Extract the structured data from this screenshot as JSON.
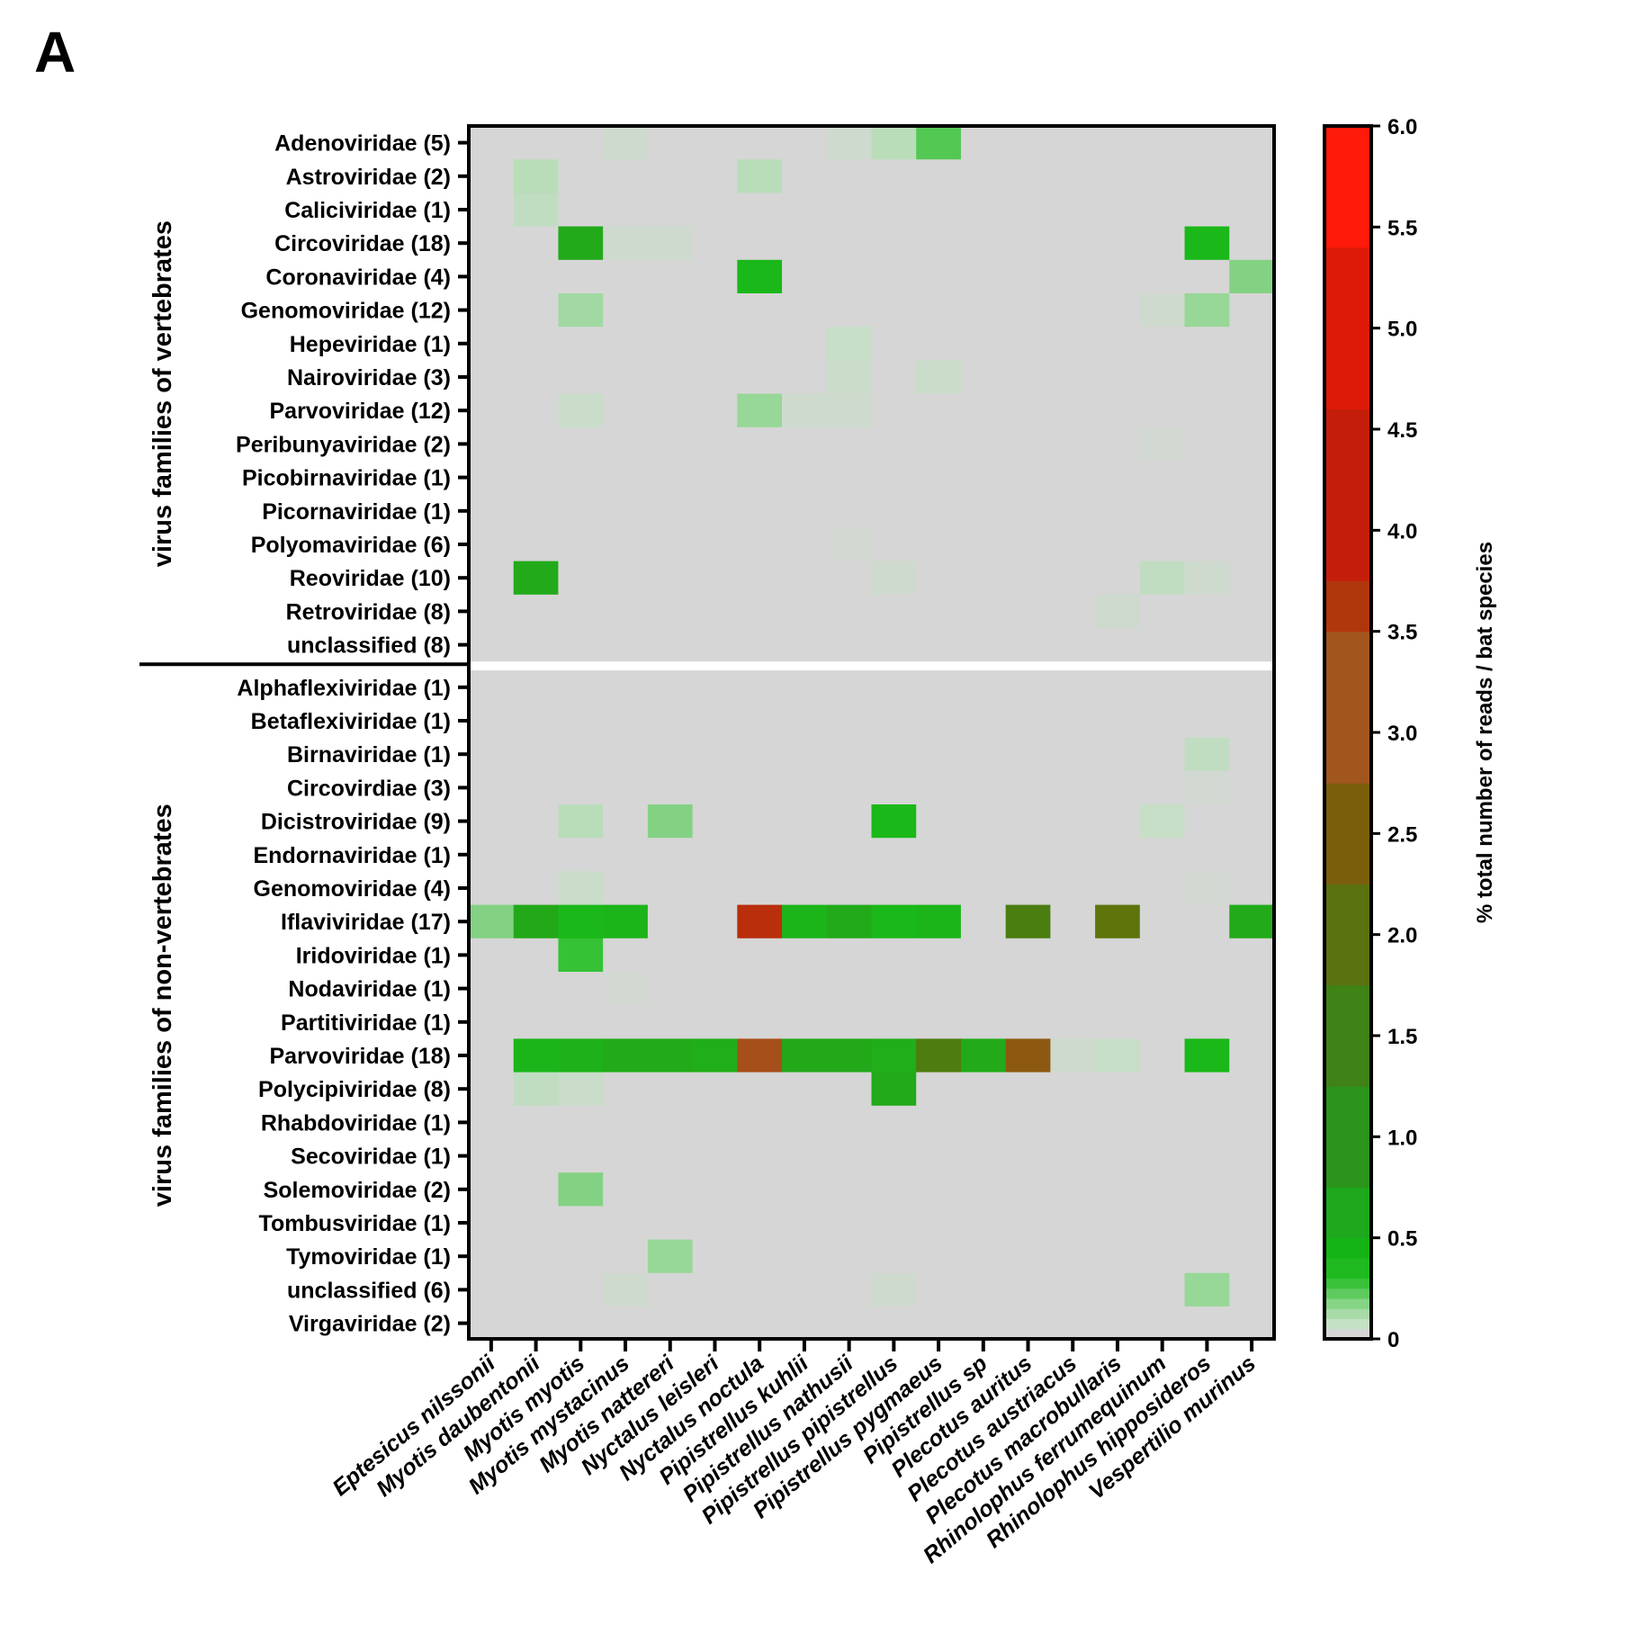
{
  "panel_label": "A",
  "chart_data": {
    "type": "heatmap",
    "colorbar_title": "% total number of reads / bat species",
    "colorbar_range": [
      0,
      6.0
    ],
    "colorbar_ticks": [
      "0",
      "0.5",
      "1.0",
      "1.5",
      "2.0",
      "2.5",
      "3.0",
      "3.5",
      "4.0",
      "4.5",
      "5.0",
      "5.5",
      "6.0"
    ],
    "colorbar_colors": [
      "#d6d6d6",
      "#c5e1c5",
      "#a8dba8",
      "#86d486",
      "#5fcb5f",
      "#3ac23a",
      "#1fba1f",
      "#14b414",
      "#1da81d",
      "#2b941a",
      "#3f8216",
      "#5a7210",
      "#7a5e0c",
      "#a1561e",
      "#b0360c",
      "#c41e0a",
      "#dd1a08",
      "#ff1a0a"
    ],
    "columns": [
      "Eptesicus nilssonii",
      "Myotis daubentonii",
      "Myotis myotis",
      "Myotis mystacinus",
      "Myotis nattereri",
      "Nyctalus leisleri",
      "Nyctalus noctula",
      "Pipistrellus kuhlii",
      "Pipistrellus nathusii",
      "Pipistrellus pipistrellus",
      "Pipistrellus pygmaeus",
      "Pipistrellus sp",
      "Plecotus auritus",
      "Plecotus austriacus",
      "Plecotus macrobullaris",
      "Rhinolophus ferrumequinum",
      "Rhinolophus hipposideros",
      "Vespertilio murinus"
    ],
    "groups": [
      {
        "label": "virus families of vertebrates",
        "rows": [
          {
            "label": "Adenoviridae (5)",
            "values": [
              0,
              0,
              0,
              0.05,
              0,
              0,
              0,
              0,
              0.05,
              0.15,
              0.4,
              0,
              0,
              0,
              0,
              0,
              0,
              0
            ]
          },
          {
            "label": "Astroviridae (2)",
            "values": [
              0,
              0.15,
              0,
              0,
              0,
              0,
              0.15,
              0,
              0,
              0,
              0,
              0,
              0,
              0,
              0,
              0,
              0,
              0
            ]
          },
          {
            "label": "Caliciviridae (1)",
            "values": [
              0,
              0.12,
              0,
              0,
              0,
              0,
              0,
              0,
              0,
              0,
              0,
              0,
              0,
              0,
              0,
              0,
              0,
              0
            ]
          },
          {
            "label": "Circoviridae (18)",
            "values": [
              0,
              0,
              0.75,
              0.05,
              0.05,
              0,
              0,
              0,
              0,
              0,
              0,
              0,
              0,
              0,
              0,
              0,
              0.55,
              0
            ]
          },
          {
            "label": "Coronaviridae (4)",
            "values": [
              0,
              0,
              0,
              0,
              0,
              0,
              0.55,
              0,
              0,
              0,
              0,
              0,
              0,
              0,
              0,
              0,
              0,
              0.3
            ]
          },
          {
            "label": "Genomoviridae (12)",
            "values": [
              0,
              0,
              0.22,
              0,
              0,
              0,
              0,
              0,
              0,
              0,
              0,
              0,
              0,
              0,
              0,
              0.05,
              0.25,
              0
            ]
          },
          {
            "label": "Hepeviridae (1)",
            "values": [
              0,
              0,
              0,
              0,
              0,
              0,
              0,
              0,
              0.1,
              0,
              0,
              0,
              0,
              0,
              0,
              0,
              0,
              0
            ]
          },
          {
            "label": "Nairoviridae (3)",
            "values": [
              0,
              0,
              0,
              0,
              0,
              0,
              0,
              0,
              0.08,
              0,
              0.08,
              0,
              0,
              0,
              0,
              0,
              0,
              0
            ]
          },
          {
            "label": "Parvoviridae (12)",
            "values": [
              0,
              0,
              0.08,
              0,
              0,
              0,
              0.25,
              0.05,
              0.05,
              0,
              0,
              0,
              0,
              0,
              0,
              0,
              0,
              0
            ]
          },
          {
            "label": "Peribunyaviridae (2)",
            "values": [
              0,
              0,
              0,
              0,
              0,
              0,
              0,
              0,
              0,
              0,
              0,
              0,
              0,
              0,
              0,
              0.03,
              0,
              0
            ]
          },
          {
            "label": "Picobirnaviridae (1)",
            "values": [
              0,
              0,
              0,
              0,
              0,
              0,
              0,
              0,
              0,
              0,
              0,
              0,
              0,
              0,
              0,
              0,
              0,
              0
            ]
          },
          {
            "label": "Picornaviridae (1)",
            "values": [
              0,
              0,
              0,
              0,
              0,
              0,
              0,
              0,
              0,
              0,
              0,
              0,
              0,
              0,
              0,
              0,
              0,
              0
            ]
          },
          {
            "label": "Polyomaviridae (6)",
            "values": [
              0,
              0,
              0,
              0,
              0,
              0,
              0,
              0,
              0.02,
              0,
              0,
              0,
              0,
              0,
              0,
              0,
              0,
              0
            ]
          },
          {
            "label": "Reoviridae (10)",
            "values": [
              0,
              0.75,
              0,
              0,
              0,
              0,
              0,
              0,
              0,
              0.05,
              0,
              0,
              0,
              0,
              0,
              0.12,
              0.05,
              0
            ]
          },
          {
            "label": "Retroviridae (8)",
            "values": [
              0,
              0,
              0,
              0,
              0,
              0,
              0,
              0,
              0,
              0,
              0,
              0,
              0,
              0,
              0.05,
              0,
              0,
              0
            ]
          },
          {
            "label": "unclassified (8)",
            "values": [
              0,
              0,
              0,
              0,
              0,
              0,
              0,
              0,
              0,
              0,
              0,
              0,
              0,
              0,
              0,
              0,
              0,
              0
            ]
          }
        ]
      },
      {
        "label": "virus families of non-vertebrates",
        "rows": [
          {
            "label": "Alphaflexiviridae (1)",
            "values": [
              0,
              0,
              0,
              0,
              0,
              0,
              0,
              0,
              0,
              0,
              0,
              0,
              0,
              0,
              0,
              0,
              0,
              0
            ]
          },
          {
            "label": "Betaflexiviridae (1)",
            "values": [
              0,
              0,
              0,
              0,
              0,
              0,
              0,
              0,
              0,
              0,
              0,
              0,
              0,
              0,
              0,
              0,
              0,
              0
            ]
          },
          {
            "label": "Birnaviridae (1)",
            "values": [
              0,
              0,
              0,
              0,
              0,
              0,
              0,
              0,
              0,
              0,
              0,
              0,
              0,
              0,
              0,
              0,
              0.12,
              0
            ]
          },
          {
            "label": "Circovirdiae (3)",
            "values": [
              0,
              0,
              0,
              0,
              0,
              0,
              0,
              0,
              0,
              0,
              0,
              0,
              0,
              0,
              0,
              0,
              0.03,
              0
            ]
          },
          {
            "label": "Dicistroviridae (9)",
            "values": [
              0,
              0,
              0.15,
              0,
              0.3,
              0,
              0,
              0,
              0,
              0.55,
              0,
              0,
              0,
              0,
              0,
              0.1,
              0,
              0
            ]
          },
          {
            "label": "Endornaviridae (1)",
            "values": [
              0,
              0,
              0,
              0,
              0,
              0,
              0,
              0,
              0,
              0,
              0,
              0,
              0,
              0,
              0,
              0,
              0,
              0
            ]
          },
          {
            "label": "Genomoviridae (4)",
            "values": [
              0,
              0,
              0.08,
              0,
              0,
              0,
              0,
              0,
              0,
              0,
              0,
              0,
              0,
              0,
              0,
              0,
              0.03,
              0
            ]
          },
          {
            "label": "Iflaviviridae (17)",
            "values": [
              0.3,
              0.8,
              0.55,
              0.6,
              0,
              0,
              4.2,
              0.6,
              0.75,
              0.55,
              0.6,
              0,
              1.9,
              0,
              2.3,
              0,
              0,
              0.75
            ]
          },
          {
            "label": "Iridoviridae (1)",
            "values": [
              0,
              0,
              0.45,
              0,
              0,
              0,
              0,
              0,
              0,
              0,
              0,
              0,
              0,
              0,
              0,
              0,
              0,
              0
            ]
          },
          {
            "label": "Nodaviridae (1)",
            "values": [
              0,
              0,
              0,
              0.02,
              0,
              0,
              0,
              0,
              0,
              0,
              0,
              0,
              0,
              0,
              0,
              0,
              0,
              0
            ]
          },
          {
            "label": "Partitiviridae (1)",
            "values": [
              0,
              0,
              0,
              0,
              0,
              0,
              0,
              0,
              0,
              0,
              0,
              0,
              0,
              0,
              0,
              0,
              0,
              0
            ]
          },
          {
            "label": "Parvoviridae (18)",
            "values": [
              0,
              0.6,
              0.65,
              0.75,
              0.75,
              0.7,
              3.6,
              0.8,
              0.8,
              0.7,
              2.0,
              0.75,
              3.2,
              0.05,
              0.1,
              0,
              0.55,
              0
            ]
          },
          {
            "label": "Polycipiviridae (8)",
            "values": [
              0,
              0.12,
              0.08,
              0,
              0,
              0,
              0,
              0,
              0,
              0.75,
              0,
              0,
              0,
              0,
              0,
              0,
              0,
              0
            ]
          },
          {
            "label": "Rhabdoviridae (1)",
            "values": [
              0,
              0,
              0,
              0,
              0,
              0,
              0,
              0,
              0,
              0,
              0,
              0,
              0,
              0,
              0,
              0,
              0,
              0
            ]
          },
          {
            "label": "Secoviridae (1)",
            "values": [
              0,
              0,
              0,
              0,
              0,
              0,
              0,
              0,
              0,
              0,
              0,
              0,
              0,
              0,
              0,
              0,
              0,
              0
            ]
          },
          {
            "label": "Solemoviridae (2)",
            "values": [
              0,
              0,
              0.3,
              0,
              0,
              0,
              0,
              0,
              0,
              0,
              0,
              0,
              0,
              0,
              0,
              0,
              0,
              0
            ]
          },
          {
            "label": "Tombusviridae (1)",
            "values": [
              0,
              0,
              0,
              0,
              0,
              0,
              0,
              0,
              0,
              0,
              0,
              0,
              0,
              0,
              0,
              0,
              0,
              0
            ]
          },
          {
            "label": "Tymoviridae (1)",
            "values": [
              0,
              0,
              0,
              0,
              0.25,
              0,
              0,
              0,
              0,
              0,
              0,
              0,
              0,
              0,
              0,
              0,
              0,
              0
            ]
          },
          {
            "label": "unclassified (6)",
            "values": [
              0,
              0,
              0,
              0.05,
              0,
              0,
              0,
              0,
              0,
              0.05,
              0,
              0,
              0,
              0,
              0,
              0,
              0.25,
              0
            ]
          },
          {
            "label": "Virgaviridae (2)",
            "values": [
              0,
              0,
              0,
              0,
              0,
              0,
              0,
              0,
              0,
              0,
              0,
              0,
              0,
              0,
              0,
              0,
              0,
              0
            ]
          }
        ]
      }
    ]
  }
}
